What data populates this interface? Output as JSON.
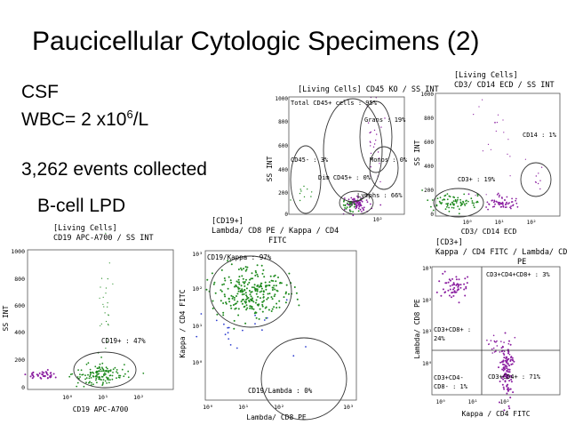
{
  "slide": {
    "title": "Paucicellular Cytologic Specimens (2)",
    "line_csf": "CSF",
    "line_wbc": "WBC= 2 x10",
    "line_wbc_exp": "6",
    "line_wbc_unit": "/L",
    "line_events": "3,262 events collected",
    "line_bcell": "B-cell LPD"
  },
  "colors": {
    "green": "#1e8a1e",
    "purple": "#8a1ea0",
    "blue": "#3040d0",
    "gate": "#333333"
  },
  "chart_data": [
    {
      "id": "p1",
      "type": "scatter",
      "title_lines": [
        "[Living Cells] CD45 KO / SS INT"
      ],
      "xlabel": "",
      "ylabel": "SS INT",
      "ylim": [
        0,
        1000
      ],
      "yticks": [
        "1000",
        "800",
        "600",
        "400",
        "200",
        "0"
      ],
      "xticks": [
        "10²"
      ],
      "gates": [
        {
          "label": "Total CD45+ cells : 95%"
        },
        {
          "label": "Grans : 19%"
        },
        {
          "label": "CD45- : 3%"
        },
        {
          "label": "Monos : 0%"
        },
        {
          "label": "Dim CD45+ : 0%"
        },
        {
          "label": "Lymphs : 66%"
        }
      ]
    },
    {
      "id": "p2",
      "type": "scatter",
      "title_lines": [
        "[Living Cells]",
        "CD3/ CD14 ECD / SS INT"
      ],
      "xlabel": "CD3/ CD14 ECD",
      "ylabel": "SS INT",
      "ylim": [
        0,
        1000
      ],
      "yticks": [
        "1000",
        "800",
        "600",
        "400",
        "200",
        "0"
      ],
      "xticks": [
        "10⁰",
        "10¹",
        "10²"
      ],
      "gates": [
        {
          "label": "CD14 : 1%"
        },
        {
          "label": "CD3+ : 19%"
        }
      ]
    },
    {
      "id": "p3",
      "type": "scatter",
      "title_lines": [
        "[Living Cells]",
        "CD19 APC-A700 / SS INT"
      ],
      "xlabel": "CD19 APC-A700",
      "ylabel": "SS INT",
      "ylim": [
        0,
        1000
      ],
      "yticks": [
        "1000",
        "800",
        "600",
        "400",
        "200",
        "0"
      ],
      "xticks": [
        "10⁰",
        "10¹",
        "10²"
      ],
      "gates": [
        {
          "label": "CD19+ : 47%"
        }
      ]
    },
    {
      "id": "p4",
      "type": "scatter",
      "title_lines": [
        "[CD19+]",
        "Lambda/ CD8 PE / Kappa / CD4",
        "FITC"
      ],
      "xlabel": "Lambda/ CD8 PE",
      "ylabel": "Kappa / CD4 FITC",
      "yticks": [
        "10³",
        "10²",
        "10¹",
        "10⁰"
      ],
      "xticks": [
        "10⁰",
        "10¹",
        "10²",
        "10³"
      ],
      "gates": [
        {
          "label": "CD19/Kappa : 97%"
        },
        {
          "label": "CD19/Lambda : 0%"
        }
      ]
    },
    {
      "id": "p5",
      "type": "scatter",
      "title_lines": [
        "[CD3+]",
        "Kappa / CD4 FITC / Lambda/ CD8",
        "PE"
      ],
      "xlabel": "Kappa / CD4 FITC",
      "ylabel": "Lambda/ CD8 PE",
      "yticks": [
        "10³",
        "10²",
        "10¹",
        "10⁰"
      ],
      "xticks": [
        "10⁰",
        "10¹",
        "10²"
      ],
      "gates": [
        {
          "label": "CD3+CD4+CD8+ : 3%"
        },
        {
          "label": "CD3+CD8+ :"
        },
        {
          "label": "24%"
        },
        {
          "label": "CD3+CD4-"
        },
        {
          "label": "CD8- : 1%"
        },
        {
          "label": "CD3+CD4+ : 71%"
        }
      ]
    }
  ]
}
